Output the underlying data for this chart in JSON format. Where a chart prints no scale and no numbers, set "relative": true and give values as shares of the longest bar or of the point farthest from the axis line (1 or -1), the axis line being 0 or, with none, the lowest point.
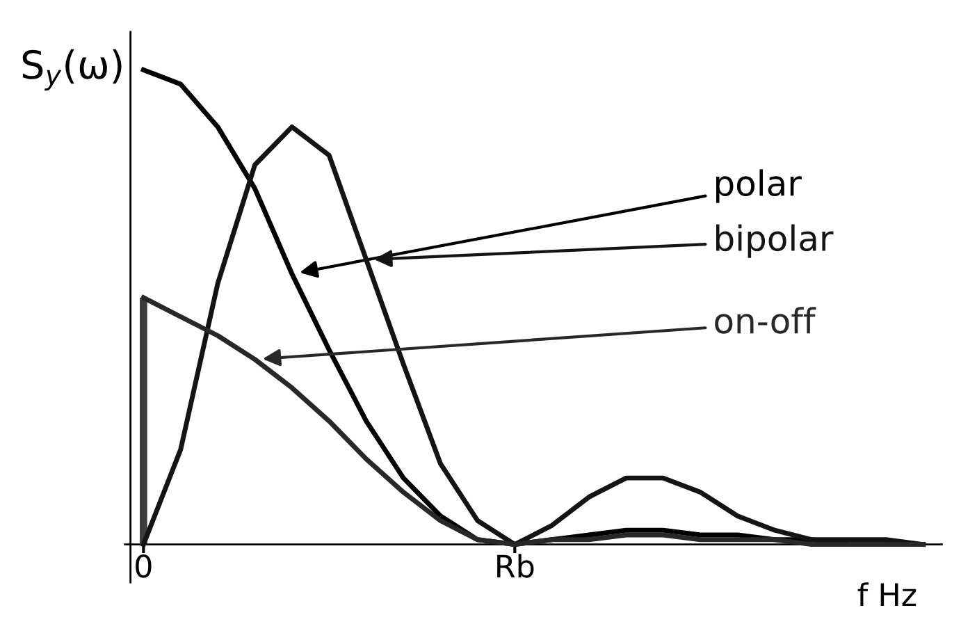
{
  "chart_data": {
    "type": "line",
    "relative": true,
    "ylabel": "S$_{y}$(ω)",
    "xlabel": "f Hz",
    "legend": false,
    "categories": [
      "0",
      null,
      null,
      null,
      null,
      null,
      null,
      null,
      null,
      null,
      "Rb",
      null,
      null,
      null,
      null,
      null,
      null,
      null,
      null,
      null,
      null,
      null
    ],
    "series": [
      {
        "name": "polar",
        "color": "#000000",
        "values": [
          1,
          0.97,
          0.88,
          0.75,
          0.57,
          0.41,
          0.26,
          0.14,
          0.06,
          0.01,
          0,
          0.01,
          0.02,
          0.03,
          0.03,
          0.02,
          0.02,
          0.01,
          0.01,
          0,
          0,
          0
        ]
      },
      {
        "name": "bipolar",
        "color": "#141414",
        "values": [
          0,
          0.2,
          0.55,
          0.8,
          0.88,
          0.82,
          0.6,
          0.38,
          0.17,
          0.05,
          0,
          0.04,
          0.1,
          0.14,
          0.14,
          0.11,
          0.06,
          0.03,
          0.01,
          0.01,
          0.01,
          0
        ]
      },
      {
        "name": "on-off",
        "color": "#282828",
        "values": [
          0.52,
          0.48,
          0.44,
          0.39,
          0.33,
          0.26,
          0.18,
          0.11,
          0.05,
          0.01,
          0,
          0.01,
          0.01,
          0.02,
          0.02,
          0.01,
          0.01,
          0.01,
          0,
          0,
          0,
          0
        ]
      },
      {
        "type": "bar",
        "color": "#3c3c3c",
        "x": [
          "0"
        ],
        "values": [
          0.52
        ]
      }
    ]
  }
}
